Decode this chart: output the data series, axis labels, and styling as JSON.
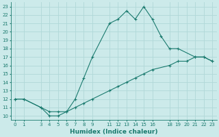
{
  "xlabel": "Humidex (Indice chaleur)",
  "line1_x": [
    0,
    1,
    3,
    4,
    5,
    6,
    7,
    8,
    9,
    11,
    12,
    13,
    14,
    15,
    16,
    17,
    18,
    19,
    21,
    22,
    23
  ],
  "line1_y": [
    12,
    12,
    11,
    10,
    10,
    10.5,
    12,
    14.5,
    17,
    21,
    21.5,
    22.5,
    21.5,
    23,
    21.5,
    19.5,
    18,
    18,
    17,
    17,
    16.5
  ],
  "line2_x": [
    0,
    1,
    3,
    4,
    5,
    6,
    7,
    8,
    9,
    11,
    12,
    13,
    14,
    15,
    16,
    18,
    19,
    20,
    21,
    22,
    23
  ],
  "line2_y": [
    12,
    12,
    11,
    10.5,
    10.5,
    10.5,
    11,
    11.5,
    12,
    13,
    13.5,
    14,
    14.5,
    15,
    15.5,
    16,
    16.5,
    16.5,
    17,
    17,
    16.5
  ],
  "line_color": "#1a7a6e",
  "bg_color": "#cceaea",
  "grid_color": "#b0d8d8",
  "xlim": [
    -0.5,
    23.5
  ],
  "ylim": [
    9.5,
    23.5
  ],
  "xticks": [
    0,
    1,
    3,
    4,
    5,
    6,
    7,
    8,
    9,
    11,
    12,
    13,
    14,
    15,
    16,
    18,
    19,
    20,
    21,
    22,
    23
  ],
  "yticks": [
    10,
    11,
    12,
    13,
    14,
    15,
    16,
    17,
    18,
    19,
    20,
    21,
    22,
    23
  ],
  "tick_fontsize": 5,
  "xlabel_fontsize": 6.5,
  "marker": "+",
  "marker_size": 3.5,
  "linewidth": 0.8
}
